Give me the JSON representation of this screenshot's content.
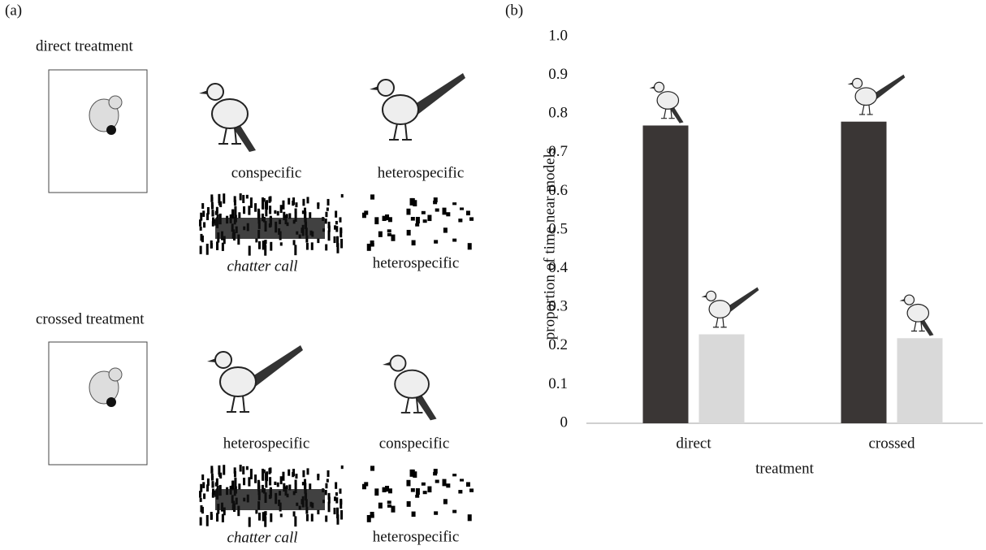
{
  "panel_a": {
    "label": "(a)",
    "direct": {
      "title": "direct treatment",
      "left_model": "conspecific",
      "right_model": "heterospecific",
      "left_sound": "chatter call",
      "right_sound": "heterospecific"
    },
    "crossed": {
      "title": "crossed treatment",
      "left_model": "heterospecific",
      "right_model": "conspecific",
      "left_sound": "chatter call",
      "right_sound": "heterospecific"
    }
  },
  "chart_data": {
    "type": "bar",
    "label": "(b)",
    "x_label": "treatment",
    "y_label": "proportion of time near models",
    "categories": [
      "direct",
      "crossed"
    ],
    "series": [
      {
        "color": "#3a3635",
        "values": [
          0.77,
          0.78
        ]
      },
      {
        "color": "#d9d9d9",
        "values": [
          0.23,
          0.22
        ]
      }
    ],
    "ylim": [
      0,
      1
    ],
    "yticks": [
      0,
      0.1,
      0.2,
      0.3,
      0.4,
      0.5,
      0.6,
      0.7,
      0.8,
      0.9,
      {
        "value": 1,
        "label": "1.0"
      }
    ]
  }
}
